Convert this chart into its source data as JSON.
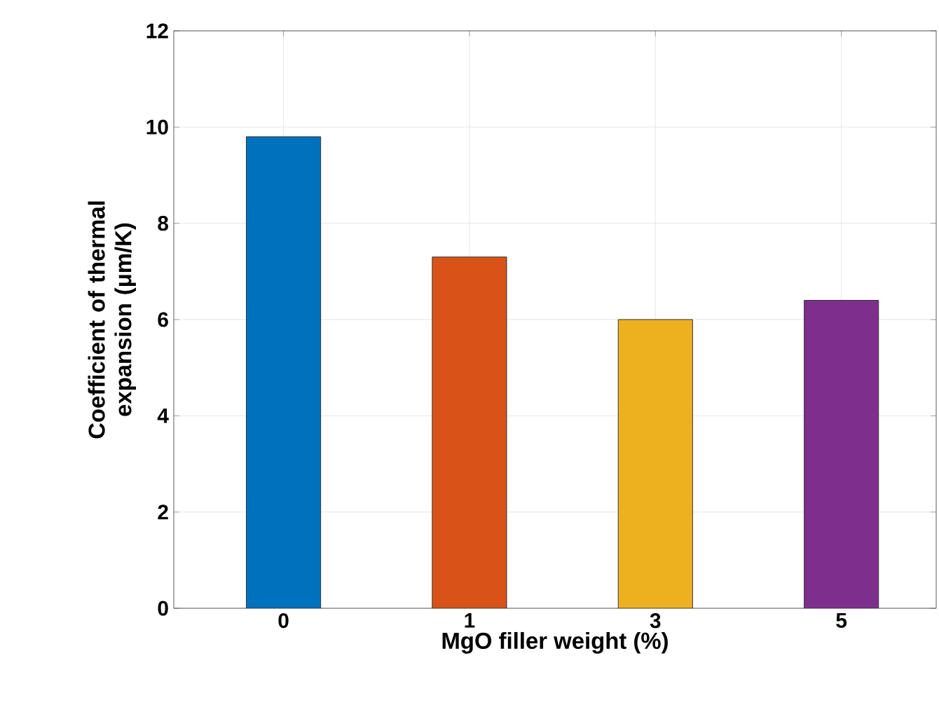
{
  "chart_data": {
    "type": "bar",
    "xlabel": "MgO filler weight (%)",
    "ylabel": "Coefficient of thermal expansion (μm/K)",
    "categories": [
      "0",
      "1",
      "3",
      "5"
    ],
    "values": [
      9.8,
      7.3,
      6.0,
      6.4
    ],
    "colors": [
      "#0072bd",
      "#d95319",
      "#edb120",
      "#7e2f8e"
    ],
    "ylim": [
      0,
      12
    ],
    "yticks": [
      0,
      2,
      4,
      6,
      8,
      10,
      12
    ],
    "grid": true
  }
}
